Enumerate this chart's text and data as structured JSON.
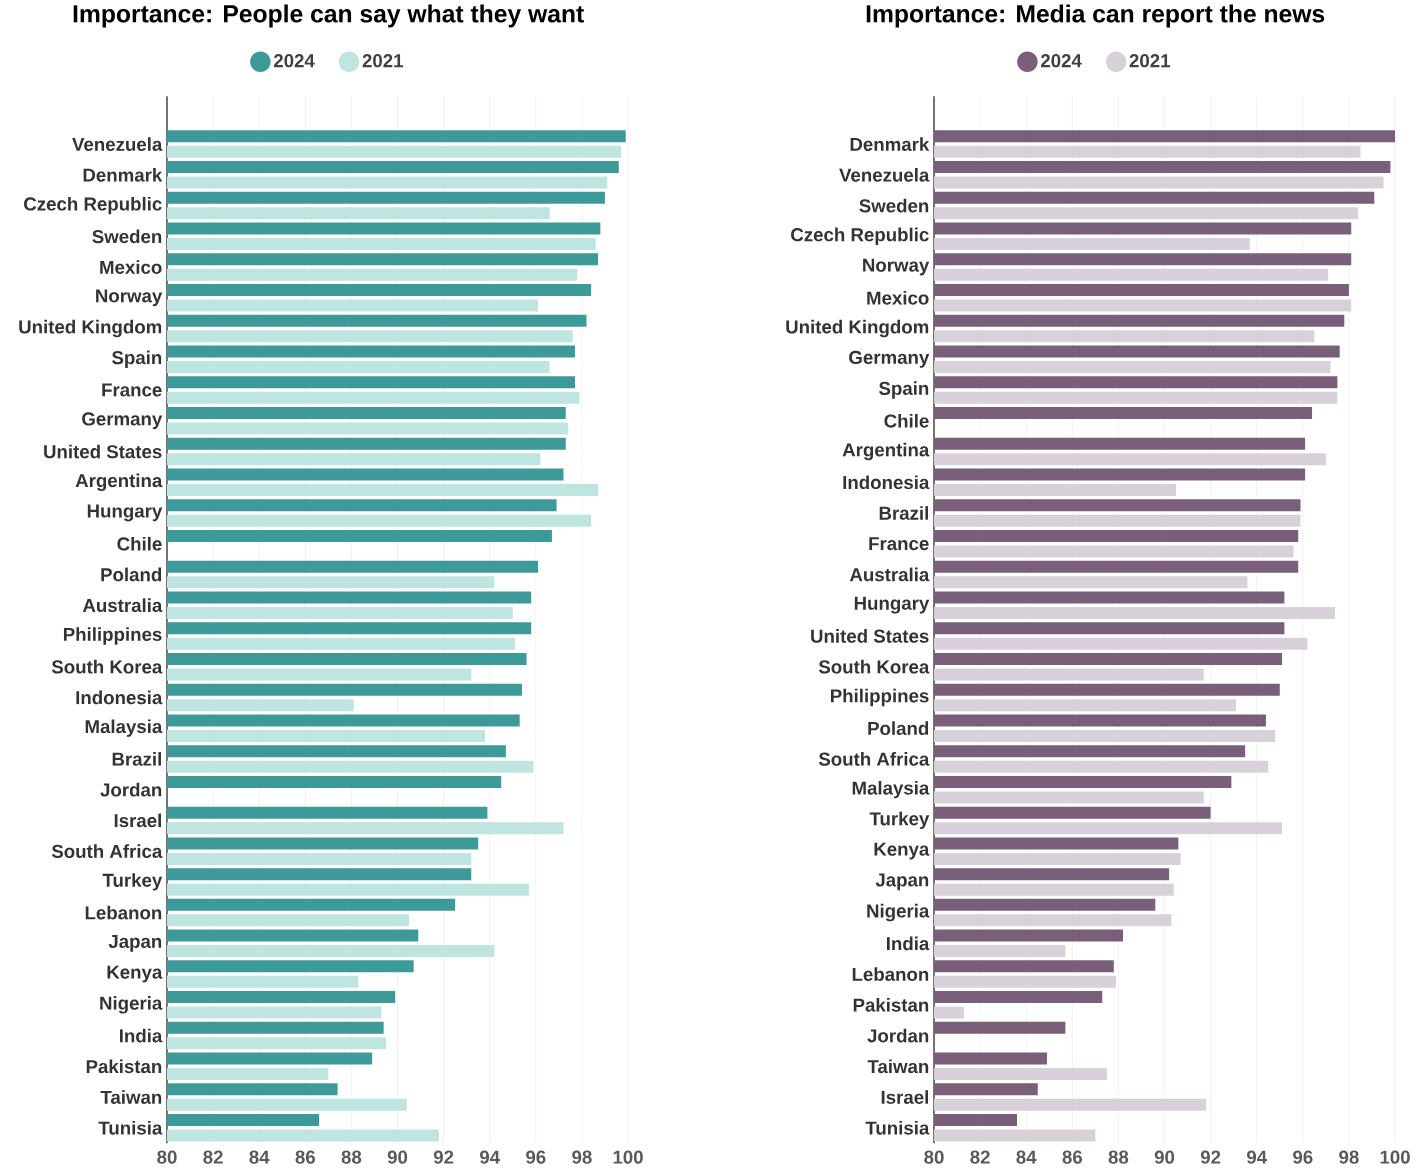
{
  "chart_data": [
    {
      "type": "bar",
      "orientation": "horizontal",
      "title": "Importance: People can say what they want",
      "legend": "top",
      "grid": "x",
      "xlim": [
        80,
        100
      ],
      "xticks": [
        80,
        82,
        84,
        86,
        88,
        90,
        92,
        94,
        96,
        98,
        100
      ],
      "categories": [
        "Venezuela",
        "Denmark",
        "Czech Republic",
        "Sweden",
        "Mexico",
        "Norway",
        "United Kingdom",
        "Spain",
        "France",
        "Germany",
        "United States",
        "Argentina",
        "Hungary",
        "Chile",
        "Poland",
        "Australia",
        "Philippines",
        "South Korea",
        "Indonesia",
        "Malaysia",
        "Brazil",
        "Jordan",
        "Israel",
        "South Africa",
        "Turkey",
        "Lebanon",
        "Japan",
        "Kenya",
        "Nigeria",
        "India",
        "Pakistan",
        "Taiwan",
        "Tunisia"
      ],
      "series": [
        {
          "name": "2024",
          "color": "#3d9a98",
          "values": [
            99.9,
            99.6,
            99.0,
            98.8,
            98.7,
            98.4,
            98.2,
            97.7,
            97.7,
            97.3,
            97.3,
            97.2,
            96.9,
            96.7,
            96.1,
            95.8,
            95.8,
            95.6,
            95.4,
            95.3,
            94.7,
            94.5,
            93.9,
            93.5,
            93.2,
            92.5,
            90.9,
            90.7,
            89.9,
            89.4,
            88.9,
            87.4,
            86.6
          ]
        },
        {
          "name": "2021",
          "color": "#bfe5e0",
          "values": [
            99.7,
            99.1,
            96.6,
            98.6,
            97.8,
            96.1,
            97.6,
            96.6,
            97.9,
            97.4,
            96.2,
            98.7,
            98.4,
            null,
            94.2,
            95.0,
            95.1,
            93.2,
            88.1,
            93.8,
            95.9,
            null,
            97.2,
            93.2,
            95.7,
            90.5,
            94.2,
            88.3,
            89.3,
            89.5,
            87.0,
            90.4,
            91.8
          ]
        }
      ]
    },
    {
      "type": "bar",
      "orientation": "horizontal",
      "title": "Importance: Media can report the news",
      "legend": "top",
      "grid": "x",
      "xlim": [
        80,
        100
      ],
      "xticks": [
        80,
        82,
        84,
        86,
        88,
        90,
        92,
        94,
        96,
        98,
        100
      ],
      "categories": [
        "Denmark",
        "Venezuela",
        "Sweden",
        "Czech Republic",
        "Norway",
        "Mexico",
        "United Kingdom",
        "Germany",
        "Spain",
        "Chile",
        "Argentina",
        "Indonesia",
        "Brazil",
        "France",
        "Australia",
        "Hungary",
        "United States",
        "South Korea",
        "Philippines",
        "Poland",
        "South Africa",
        "Malaysia",
        "Turkey",
        "Kenya",
        "Japan",
        "Nigeria",
        "India",
        "Lebanon",
        "Pakistan",
        "Jordan",
        "Taiwan",
        "Israel",
        "Tunisia"
      ],
      "series": [
        {
          "name": "2024",
          "color": "#7a5f7b",
          "values": [
            100.0,
            99.8,
            99.1,
            98.1,
            98.1,
            98.0,
            97.8,
            97.6,
            97.5,
            96.4,
            96.1,
            96.1,
            95.9,
            95.8,
            95.8,
            95.2,
            95.2,
            95.1,
            95.0,
            94.4,
            93.5,
            92.9,
            92.0,
            90.6,
            90.2,
            89.6,
            88.2,
            87.8,
            87.3,
            85.7,
            84.9,
            84.5,
            83.6
          ]
        },
        {
          "name": "2021",
          "color": "#d9d1d9",
          "values": [
            98.5,
            99.5,
            98.4,
            93.7,
            97.1,
            98.1,
            96.5,
            97.2,
            97.5,
            null,
            97.0,
            90.5,
            95.9,
            95.6,
            93.6,
            97.4,
            96.2,
            91.7,
            93.1,
            94.8,
            94.5,
            91.7,
            95.1,
            90.7,
            90.4,
            90.3,
            85.7,
            87.9,
            81.3,
            null,
            87.5,
            91.8,
            87.0
          ]
        }
      ]
    }
  ]
}
